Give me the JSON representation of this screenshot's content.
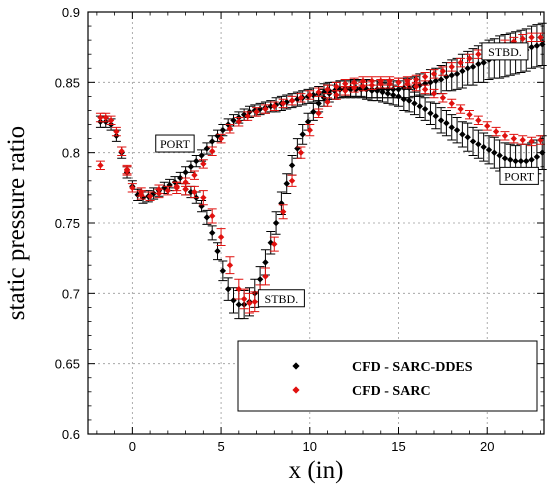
{
  "chart_data": {
    "type": "scatter",
    "title": "",
    "xlabel": "x (in)",
    "ylabel": "static pressure ratio",
    "xlim": [
      -2.5,
      23.2
    ],
    "ylim": [
      0.6,
      0.9
    ],
    "x_ticks": [
      0,
      5,
      10,
      15,
      20
    ],
    "y_ticks": [
      0.6,
      0.65,
      0.7,
      0.75,
      0.8,
      0.85,
      0.9
    ],
    "x_tick_labels": [
      "0",
      "5",
      "10",
      "15",
      "20"
    ],
    "y_tick_labels": [
      "0.6",
      "0.65",
      "0.7",
      "0.75",
      "0.8",
      "0.85",
      "0.9"
    ],
    "grid": true,
    "legend_position": "bottom-right",
    "error_bars": true,
    "annotations": [
      {
        "text": "PORT",
        "x": 2.4,
        "y": 0.8065
      },
      {
        "text": "STBD.",
        "x": 21.0,
        "y": 0.872
      },
      {
        "text": "PORT",
        "x": 21.8,
        "y": 0.7835
      },
      {
        "text": "STBD.",
        "x": 8.4,
        "y": 0.6965
      }
    ],
    "series": [
      {
        "name": "CFD - SARC-DDES",
        "color": "#000000",
        "groups": [
          {
            "label": "PORT",
            "x": [
              -1.8,
              -1.5,
              -1.2,
              -0.9,
              -0.6,
              -0.3,
              0.0,
              0.3,
              0.6,
              0.9,
              1.2,
              1.5,
              1.8,
              2.1,
              2.4,
              2.7,
              3.0,
              3.3,
              3.6,
              3.9,
              4.2,
              4.5,
              4.8,
              5.1,
              5.4,
              5.7,
              6.0,
              6.3,
              6.6,
              6.9,
              7.2,
              7.5,
              7.8,
              8.1,
              8.4,
              8.7,
              9.0,
              9.3,
              9.6,
              9.9,
              10.2,
              10.5,
              10.8,
              11.1,
              11.4,
              11.7,
              12.0,
              12.3,
              12.6,
              12.9,
              13.2,
              13.5,
              13.8,
              14.1,
              14.4,
              14.7,
              15.0,
              15.3,
              15.6,
              15.9,
              16.2,
              16.5,
              16.8,
              17.1,
              17.4,
              17.7,
              18.0,
              18.3,
              18.6,
              18.9,
              19.2,
              19.5,
              19.8,
              20.1,
              20.4,
              20.7,
              21.0,
              21.3,
              21.6,
              21.9,
              22.2,
              22.5,
              22.8,
              23.1
            ],
            "y": [
              0.822,
              0.822,
              0.82,
              0.812,
              0.8,
              0.786,
              0.776,
              0.77,
              0.768,
              0.769,
              0.771,
              0.773,
              0.775,
              0.777,
              0.779,
              0.782,
              0.786,
              0.79,
              0.794,
              0.798,
              0.803,
              0.808,
              0.812,
              0.816,
              0.82,
              0.823,
              0.825,
              0.827,
              0.829,
              0.83,
              0.831,
              0.832,
              0.833,
              0.834,
              0.835,
              0.836,
              0.837,
              0.838,
              0.839,
              0.84,
              0.841,
              0.842,
              0.843,
              0.844,
              0.844,
              0.845,
              0.845,
              0.845,
              0.845,
              0.845,
              0.845,
              0.844,
              0.844,
              0.843,
              0.842,
              0.841,
              0.84,
              0.838,
              0.837,
              0.835,
              0.833,
              0.831,
              0.828,
              0.826,
              0.823,
              0.821,
              0.818,
              0.816,
              0.813,
              0.811,
              0.808,
              0.806,
              0.804,
              0.802,
              0.8,
              0.798,
              0.796,
              0.795,
              0.794,
              0.794,
              0.794,
              0.795,
              0.797,
              0.8
            ],
            "err": [
              0.004,
              0.004,
              0.004,
              0.004,
              0.004,
              0.004,
              0.004,
              0.004,
              0.004,
              0.004,
              0.004,
              0.004,
              0.004,
              0.004,
              0.004,
              0.004,
              0.004,
              0.004,
              0.004,
              0.004,
              0.004,
              0.004,
              0.004,
              0.004,
              0.004,
              0.004,
              0.004,
              0.004,
              0.004,
              0.004,
              0.004,
              0.004,
              0.004,
              0.005,
              0.005,
              0.005,
              0.005,
              0.005,
              0.005,
              0.005,
              0.005,
              0.005,
              0.006,
              0.006,
              0.006,
              0.006,
              0.006,
              0.006,
              0.006,
              0.006,
              0.007,
              0.007,
              0.007,
              0.007,
              0.007,
              0.007,
              0.007,
              0.008,
              0.008,
              0.008,
              0.008,
              0.008,
              0.008,
              0.009,
              0.009,
              0.009,
              0.009,
              0.009,
              0.009,
              0.01,
              0.01,
              0.01,
              0.01,
              0.01,
              0.011,
              0.011,
              0.011,
              0.011,
              0.011,
              0.012,
              0.012,
              0.012,
              0.012,
              0.012
            ]
          },
          {
            "label": "STBD.",
            "x": [
              3.0,
              3.3,
              3.6,
              3.9,
              4.2,
              4.5,
              4.8,
              5.1,
              5.4,
              5.7,
              6.0,
              6.3,
              6.6,
              6.9,
              7.2,
              7.5,
              7.8,
              8.1,
              8.4,
              8.7,
              9.0,
              9.3,
              9.6,
              9.9,
              10.2,
              10.5,
              10.8,
              11.1,
              11.4,
              11.7,
              12.0,
              12.3,
              12.6,
              12.9,
              13.2,
              13.5,
              13.8,
              14.1,
              14.4,
              14.7,
              15.0,
              15.3,
              15.6,
              15.9,
              16.2,
              16.5,
              16.8,
              17.1,
              17.4,
              17.7,
              18.0,
              18.3,
              18.6,
              18.9,
              19.2,
              19.5,
              19.8,
              20.1,
              20.4,
              20.7,
              21.0,
              21.3,
              21.6,
              21.9,
              22.2,
              22.5,
              22.8,
              23.1
            ],
            "y": [
              0.774,
              0.772,
              0.768,
              0.762,
              0.754,
              0.743,
              0.73,
              0.716,
              0.703,
              0.695,
              0.692,
              0.692,
              0.694,
              0.7,
              0.71,
              0.722,
              0.736,
              0.75,
              0.764,
              0.778,
              0.791,
              0.803,
              0.813,
              0.822,
              0.829,
              0.835,
              0.839,
              0.842,
              0.844,
              0.845,
              0.846,
              0.846,
              0.846,
              0.846,
              0.845,
              0.845,
              0.845,
              0.845,
              0.845,
              0.845,
              0.845,
              0.846,
              0.846,
              0.847,
              0.848,
              0.849,
              0.85,
              0.851,
              0.852,
              0.854,
              0.855,
              0.856,
              0.858,
              0.86,
              0.861,
              0.863,
              0.864,
              0.866,
              0.867,
              0.868,
              0.869,
              0.87,
              0.871,
              0.872,
              0.873,
              0.875,
              0.876,
              0.877
            ],
            "err": [
              0.004,
              0.004,
              0.004,
              0.004,
              0.005,
              0.005,
              0.006,
              0.007,
              0.008,
              0.009,
              0.01,
              0.01,
              0.01,
              0.01,
              0.009,
              0.009,
              0.008,
              0.008,
              0.008,
              0.007,
              0.007,
              0.007,
              0.007,
              0.006,
              0.006,
              0.006,
              0.006,
              0.006,
              0.006,
              0.006,
              0.006,
              0.006,
              0.006,
              0.006,
              0.006,
              0.006,
              0.006,
              0.006,
              0.006,
              0.006,
              0.006,
              0.007,
              0.007,
              0.007,
              0.008,
              0.008,
              0.009,
              0.009,
              0.01,
              0.01,
              0.011,
              0.011,
              0.012,
              0.012,
              0.013,
              0.013,
              0.014,
              0.014,
              0.014,
              0.015,
              0.015,
              0.015,
              0.015,
              0.015,
              0.015,
              0.015,
              0.015,
              0.015
            ]
          }
        ]
      },
      {
        "name": "CFD - SARC",
        "color": "#e0110f",
        "groups": [
          {
            "label": "PORT",
            "x": [
              -1.8,
              -1.5,
              -1.2,
              -0.9,
              -0.6,
              -0.3,
              0.0,
              0.5,
              1.0,
              1.5,
              2.0,
              2.5,
              3.0,
              3.5,
              4.0,
              4.5,
              5.0,
              5.5,
              6.0,
              6.5,
              7.0,
              7.5,
              8.0,
              8.5,
              9.0,
              9.5,
              10.0,
              10.5,
              11.0,
              11.5,
              12.0,
              12.5,
              13.0,
              13.5,
              14.0,
              14.5,
              15.0,
              15.5,
              16.0,
              16.5,
              17.0,
              17.5,
              18.0,
              18.5,
              19.0,
              19.5,
              20.0,
              20.5,
              21.0,
              21.5,
              22.0,
              22.5,
              23.0
            ],
            "y": [
              0.825,
              0.825,
              0.823,
              0.815,
              0.801,
              0.788,
              0.775,
              0.77,
              0.769,
              0.771,
              0.773,
              0.776,
              0.779,
              0.784,
              0.792,
              0.801,
              0.81,
              0.817,
              0.822,
              0.826,
              0.829,
              0.831,
              0.833,
              0.835,
              0.837,
              0.839,
              0.841,
              0.843,
              0.845,
              0.847,
              0.849,
              0.85,
              0.851,
              0.851,
              0.851,
              0.851,
              0.85,
              0.849,
              0.847,
              0.845,
              0.842,
              0.839,
              0.835,
              0.831,
              0.827,
              0.823,
              0.819,
              0.815,
              0.812,
              0.81,
              0.809,
              0.808,
              0.809
            ],
            "err": [
              0.003,
              0.003,
              0.003,
              0.003,
              0.003,
              0.003,
              0.003,
              0.003,
              0.003,
              0.003,
              0.003,
              0.003,
              0.003,
              0.003,
              0.003,
              0.003,
              0.003,
              0.003,
              0.003,
              0.003,
              0.003,
              0.003,
              0.003,
              0.003,
              0.003,
              0.003,
              0.003,
              0.003,
              0.003,
              0.003,
              0.003,
              0.003,
              0.003,
              0.003,
              0.003,
              0.003,
              0.003,
              0.003,
              0.003,
              0.003,
              0.003,
              0.003,
              0.003,
              0.003,
              0.003,
              0.003,
              0.003,
              0.003,
              0.003,
              0.003,
              0.003,
              0.003,
              0.003
            ]
          },
          {
            "label": "STBD.",
            "x": [
              -1.8,
              -0.3,
              0.5,
              1.5,
              2.5,
              3.0,
              3.5,
              4.0,
              4.5,
              5.0,
              5.5,
              6.0,
              6.3,
              6.6,
              6.9,
              7.2,
              7.5,
              8.0,
              8.5,
              9.0,
              9.5,
              10.0,
              10.5,
              11.0,
              11.5,
              12.0,
              12.5,
              13.0,
              13.5,
              14.0,
              14.5,
              15.0,
              15.5,
              16.0,
              16.5,
              17.0,
              17.5,
              18.0,
              18.5,
              19.0,
              19.5,
              20.0,
              20.5,
              21.0,
              21.5,
              22.0,
              22.5,
              23.0
            ],
            "y": [
              0.791,
              0.787,
              0.772,
              0.774,
              0.775,
              0.774,
              0.772,
              0.768,
              0.755,
              0.74,
              0.72,
              0.703,
              0.696,
              0.693,
              0.694,
              0.7,
              0.712,
              0.735,
              0.758,
              0.78,
              0.8,
              0.816,
              0.828,
              0.836,
              0.841,
              0.844,
              0.846,
              0.847,
              0.848,
              0.849,
              0.849,
              0.85,
              0.851,
              0.852,
              0.854,
              0.856,
              0.858,
              0.861,
              0.864,
              0.867,
              0.87,
              0.873,
              0.875,
              0.877,
              0.879,
              0.881,
              0.882,
              0.882
            ],
            "err": [
              0.003,
              0.003,
              0.003,
              0.003,
              0.004,
              0.004,
              0.004,
              0.005,
              0.005,
              0.006,
              0.006,
              0.007,
              0.007,
              0.007,
              0.007,
              0.006,
              0.006,
              0.005,
              0.005,
              0.004,
              0.004,
              0.004,
              0.003,
              0.003,
              0.003,
              0.003,
              0.003,
              0.003,
              0.003,
              0.003,
              0.003,
              0.003,
              0.003,
              0.003,
              0.003,
              0.003,
              0.003,
              0.003,
              0.003,
              0.003,
              0.003,
              0.003,
              0.003,
              0.003,
              0.003,
              0.003,
              0.003,
              0.003
            ]
          }
        ]
      }
    ]
  }
}
